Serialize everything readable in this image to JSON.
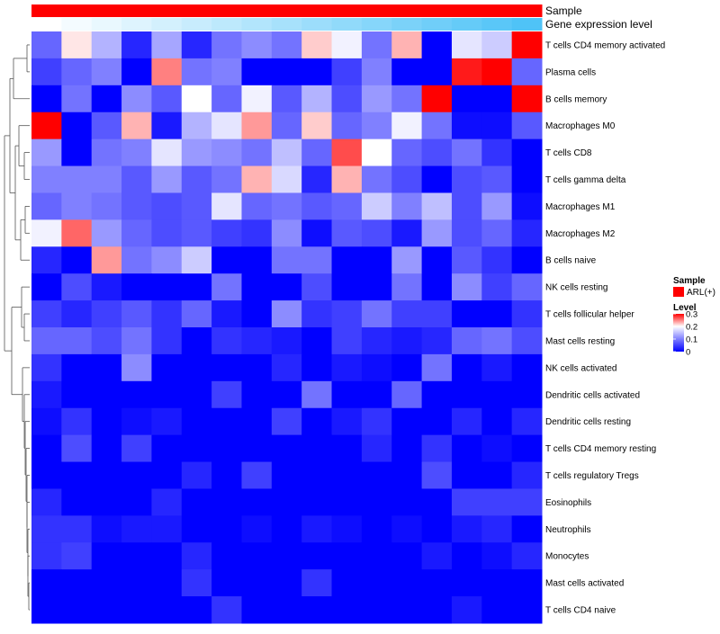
{
  "chart_data": {
    "type": "heatmap",
    "annotation_tracks": [
      {
        "name": "Sample",
        "color": "#ff0000"
      },
      {
        "name": "Gene expression level",
        "gradient": [
          "#ffffff",
          "#4fc3f7"
        ]
      }
    ],
    "rows": [
      "T cells CD4 memory activated",
      "Plasma cells",
      "B cells memory",
      "Macrophages M0",
      "T cells CD8",
      "T cells gamma delta",
      "Macrophages M1",
      "Macrophages M2",
      "B cells naive",
      "NK cells resting",
      "T cells follicular helper",
      "Mast cells resting",
      "NK cells activated",
      "Dendritic cells activated",
      "Dendritic cells resting",
      "T cells CD4 memory resting",
      "T cells regulatory  Tregs",
      "Eosinophils",
      "Neutrophils",
      "Monocytes",
      "Mast cells activated",
      "T cells CD4 naive"
    ],
    "n_columns": 17,
    "values": [
      [
        0.08,
        0.21,
        0.14,
        0.03,
        0.13,
        0.03,
        0.09,
        0.11,
        0.09,
        0.22,
        0.19,
        0.09,
        0.23,
        0.0,
        0.18,
        0.16,
        0.3
      ],
      [
        0.05,
        0.08,
        0.1,
        0.0,
        0.25,
        0.09,
        0.1,
        0.0,
        0.0,
        0.0,
        0.05,
        0.1,
        0.0,
        0.0,
        0.29,
        0.3,
        0.08
      ],
      [
        0.0,
        0.09,
        0.0,
        0.11,
        0.07,
        0.2,
        0.08,
        0.19,
        0.07,
        0.14,
        0.06,
        0.12,
        0.09,
        0.3,
        0.0,
        0.0,
        0.3
      ],
      [
        0.3,
        0.0,
        0.07,
        0.23,
        0.02,
        0.14,
        0.18,
        0.24,
        0.08,
        0.22,
        0.08,
        0.1,
        0.19,
        0.09,
        0.01,
        0.01,
        0.07
      ],
      [
        0.12,
        0.0,
        0.09,
        0.1,
        0.18,
        0.12,
        0.11,
        0.09,
        0.15,
        0.08,
        0.27,
        0.2,
        0.08,
        0.06,
        0.09,
        0.04,
        0.0
      ],
      [
        0.1,
        0.1,
        0.1,
        0.07,
        0.12,
        0.07,
        0.09,
        0.23,
        0.17,
        0.03,
        0.23,
        0.09,
        0.06,
        0.0,
        0.06,
        0.07,
        0.0
      ],
      [
        0.08,
        0.1,
        0.09,
        0.07,
        0.06,
        0.07,
        0.18,
        0.08,
        0.09,
        0.07,
        0.08,
        0.16,
        0.1,
        0.15,
        0.06,
        0.12,
        0.01
      ],
      [
        0.19,
        0.26,
        0.12,
        0.08,
        0.06,
        0.07,
        0.05,
        0.04,
        0.11,
        0.01,
        0.07,
        0.06,
        0.02,
        0.12,
        0.06,
        0.08,
        0.03
      ],
      [
        0.03,
        0.0,
        0.24,
        0.09,
        0.11,
        0.16,
        0.0,
        0.0,
        0.09,
        0.09,
        0.0,
        0.0,
        0.12,
        0.0,
        0.07,
        0.04,
        0.0
      ],
      [
        0.0,
        0.06,
        0.02,
        0.0,
        0.0,
        0.0,
        0.09,
        0.0,
        0.0,
        0.06,
        0.0,
        0.0,
        0.09,
        0.0,
        0.11,
        0.05,
        0.08
      ],
      [
        0.05,
        0.03,
        0.05,
        0.07,
        0.04,
        0.08,
        0.02,
        0.0,
        0.11,
        0.04,
        0.05,
        0.09,
        0.05,
        0.05,
        0.0,
        0.0,
        0.04
      ],
      [
        0.08,
        0.08,
        0.06,
        0.09,
        0.04,
        0.0,
        0.04,
        0.03,
        0.02,
        0.0,
        0.05,
        0.03,
        0.02,
        0.03,
        0.08,
        0.09,
        0.06
      ],
      [
        0.04,
        0.0,
        0.0,
        0.11,
        0.0,
        0.0,
        0.0,
        0.0,
        0.03,
        0.0,
        0.02,
        0.01,
        0.0,
        0.09,
        0.0,
        0.02,
        0.0
      ],
      [
        0.02,
        0.0,
        0.0,
        0.0,
        0.0,
        0.0,
        0.05,
        0.0,
        0.0,
        0.09,
        0.0,
        0.0,
        0.08,
        0.0,
        0.0,
        0.0,
        0.0
      ],
      [
        0.01,
        0.04,
        0.0,
        0.01,
        0.02,
        0.0,
        0.0,
        0.0,
        0.05,
        0.0,
        0.02,
        0.04,
        0.0,
        0.0,
        0.03,
        0.0,
        0.03
      ],
      [
        0.0,
        0.06,
        0.0,
        0.05,
        0.0,
        0.0,
        0.0,
        0.0,
        0.0,
        0.0,
        0.0,
        0.03,
        0.0,
        0.04,
        0.0,
        0.01,
        0.0
      ],
      [
        0.0,
        0.0,
        0.0,
        0.0,
        0.0,
        0.03,
        0.0,
        0.05,
        0.0,
        0.0,
        0.0,
        0.0,
        0.0,
        0.06,
        0.0,
        0.0,
        0.03
      ],
      [
        0.03,
        0.0,
        0.0,
        0.0,
        0.03,
        0.0,
        0.0,
        0.0,
        0.0,
        0.0,
        0.0,
        0.0,
        0.0,
        0.0,
        0.05,
        0.05,
        0.05
      ],
      [
        0.04,
        0.04,
        0.01,
        0.02,
        0.02,
        0.0,
        0.0,
        0.01,
        0.0,
        0.02,
        0.01,
        0.0,
        0.01,
        0.0,
        0.02,
        0.03,
        0.0
      ],
      [
        0.04,
        0.05,
        0.0,
        0.0,
        0.0,
        0.03,
        0.0,
        0.0,
        0.0,
        0.0,
        0.0,
        0.0,
        0.0,
        0.02,
        0.0,
        0.01,
        0.03
      ],
      [
        0.0,
        0.0,
        0.0,
        0.0,
        0.0,
        0.04,
        0.0,
        0.0,
        0.0,
        0.04,
        0.0,
        0.0,
        0.0,
        0.0,
        0.0,
        0.0,
        0.0
      ],
      [
        0.0,
        0.0,
        0.0,
        0.0,
        0.0,
        0.0,
        0.04,
        0.0,
        0.0,
        0.0,
        0.0,
        0.0,
        0.0,
        0.0,
        0.02,
        0.0,
        0.0
      ]
    ],
    "color_scale": {
      "min": 0,
      "mid": 0.2,
      "max": 0.3,
      "colors": [
        "#0000ff",
        "#ffffff",
        "#ff0000"
      ]
    },
    "legend": {
      "sample_title": "Sample",
      "sample_entry": "ARL(+)",
      "level_title": "Level",
      "level_ticks": [
        "0.3",
        "0.2",
        "0.1",
        "0"
      ],
      "placement": "right"
    },
    "row_dendrogram": true
  }
}
